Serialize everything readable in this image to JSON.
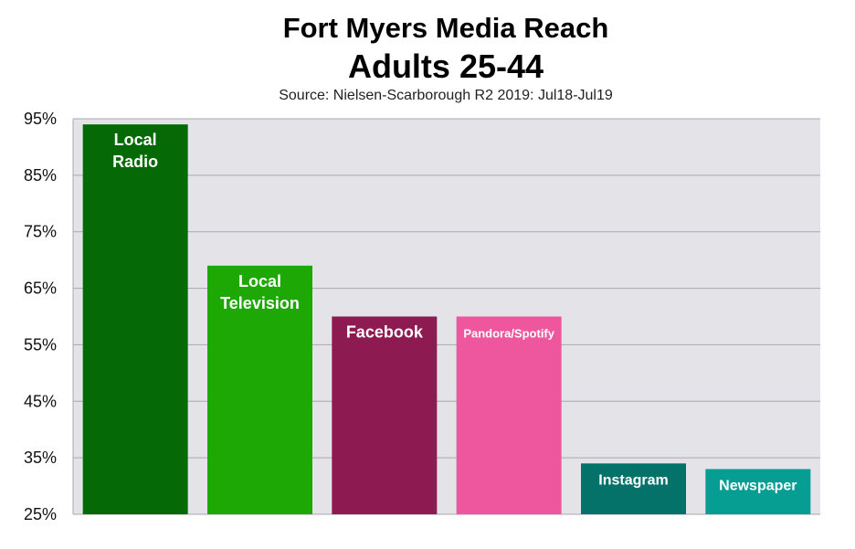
{
  "chart_data": {
    "type": "bar",
    "title": "Fort Myers Media Reach",
    "subtitle": "Adults 25-44",
    "source": "Source: Nielsen-Scarborough R2 2019: Jul18-Jul19",
    "ylim": [
      25,
      95
    ],
    "yticks": [
      95,
      85,
      75,
      65,
      55,
      45,
      35,
      25
    ],
    "ytick_labels": [
      "95%",
      "85%",
      "75%",
      "65%",
      "55%",
      "45%",
      "35%",
      "25%"
    ],
    "grid": true,
    "background_color": "#e4e3e8",
    "categories": [
      {
        "label_lines": [
          "Local",
          "Radio"
        ],
        "value": 94,
        "color": "#056a06"
      },
      {
        "label_lines": [
          "Local",
          "Television"
        ],
        "value": 69,
        "color": "#1ea806"
      },
      {
        "label_lines": [
          "Facebook"
        ],
        "value": 60,
        "color": "#8e1a52"
      },
      {
        "label_lines": [
          "Pandora/Spotify"
        ],
        "value": 60,
        "color": "#ee579d"
      },
      {
        "label_lines": [
          "Instagram"
        ],
        "value": 34,
        "color": "#05726a"
      },
      {
        "label_lines": [
          "Newspaper"
        ],
        "value": 33,
        "color": "#069d92"
      }
    ]
  }
}
